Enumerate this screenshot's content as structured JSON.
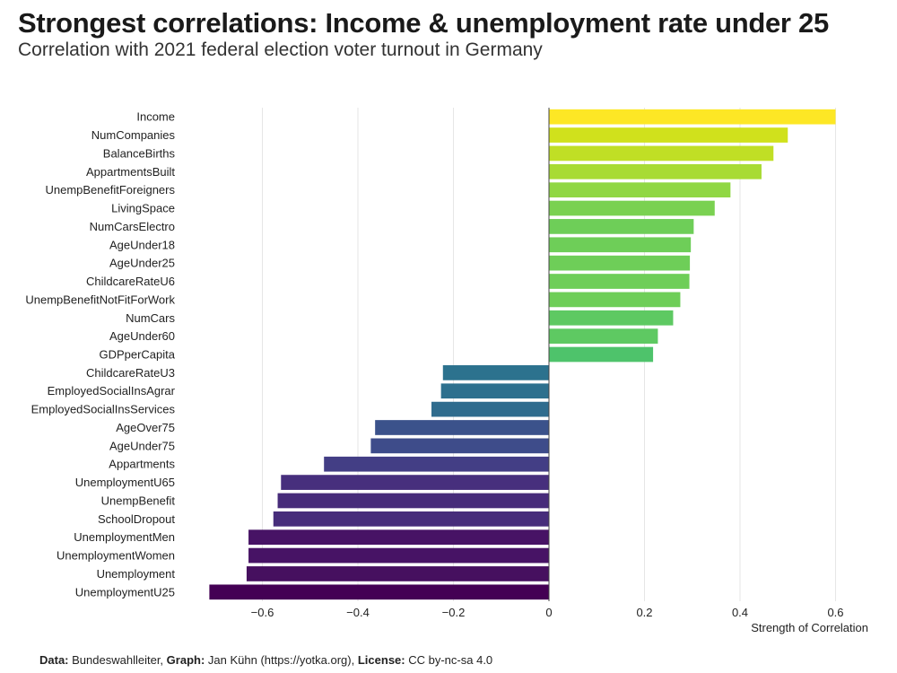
{
  "title": "Strongest correlations: Income & unemployment rate under 25",
  "subtitle": "Correlation with 2021 federal election voter turnout in Germany",
  "caption": {
    "data_label": "Data:",
    "data_value": "Bundeswahlleiter,",
    "graph_label": "Graph:",
    "graph_value": "Jan Kühn (https://yotka.org),",
    "license_label": "License:",
    "license_value": "CC by-nc-sa 4.0"
  },
  "chart_data": {
    "type": "bar",
    "orientation": "horizontal",
    "xlabel": "Strength of Correlation",
    "ylabel": "",
    "xlim": [
      -0.75,
      0.62
    ],
    "xticks": [
      -0.6,
      -0.4,
      -0.2,
      0,
      0.2,
      0.4,
      0.6
    ],
    "xtick_labels": [
      "−0.6",
      "−0.4",
      "−0.2",
      "0",
      "0.2",
      "0.4",
      "0.6"
    ],
    "grid": "vertical",
    "colormap": "viridis",
    "categories": [
      "Income",
      "NumCompanies",
      "BalanceBirths",
      "AppartmentsBuilt",
      "UnempBenefitForeigners",
      "LivingSpace",
      "NumCarsElectro",
      "AgeUnder18",
      "AgeUnder25",
      "ChildcareRateU6",
      "UnempBenefitNotFitForWork",
      "NumCars",
      "AgeUnder60",
      "GDPperCapita",
      "ChildcareRateU3",
      "EmployedSocialInsAgrar",
      "EmployedSocialInsServices",
      "AgeOver75",
      "AgeUnder75",
      "Appartments",
      "UnemploymentU65",
      "UnempBenefit",
      "SchoolDropout",
      "UnemploymentMen",
      "UnemploymentWomen",
      "Unemployment",
      "UnemploymentU25"
    ],
    "values": [
      0.6,
      0.5,
      0.47,
      0.445,
      0.38,
      0.347,
      0.303,
      0.297,
      0.295,
      0.294,
      0.275,
      0.26,
      0.228,
      0.218,
      -0.222,
      -0.226,
      -0.246,
      -0.364,
      -0.373,
      -0.471,
      -0.561,
      -0.568,
      -0.577,
      -0.629,
      -0.629,
      -0.633,
      -0.711
    ],
    "colors": [
      "#fde725",
      "#d0e11c",
      "#c0df25",
      "#a8db34",
      "#90d743",
      "#7ad151",
      "#6ece58",
      "#6ece58",
      "#6ece58",
      "#6ece58",
      "#6ece58",
      "#5ec962",
      "#5ec962",
      "#4ec36b",
      "#2c728e",
      "#2d708e",
      "#2f6c8e",
      "#3b528b",
      "#3e4c8a",
      "#433e85",
      "#472f7d",
      "#472c7a",
      "#472d7b",
      "#471365",
      "#471365",
      "#46105f",
      "#440154"
    ]
  }
}
